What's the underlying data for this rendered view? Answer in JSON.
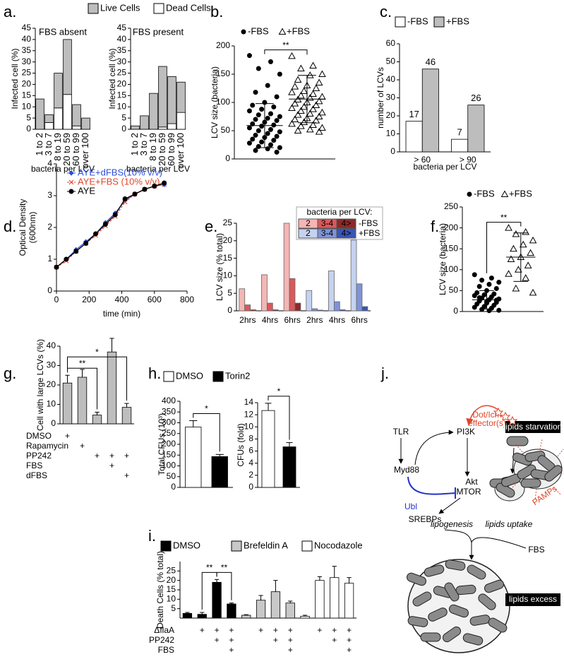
{
  "chart_data": [
    {
      "type": "bar",
      "panel": "a.",
      "title": "FBS absent",
      "stacked": true,
      "categories": [
        "1 to 2",
        "3 to 7",
        "8 to 19",
        "20 to 59",
        "60 to 99",
        "over 100"
      ],
      "series": [
        {
          "name": "Live Cells",
          "color": "#bdbdbd",
          "values": [
            13.5,
            3.5,
            15.5,
            24.5,
            9.5,
            5
          ]
        },
        {
          "name": "Dead Cells",
          "color": "#ffffff",
          "values": [
            0,
            3,
            9.5,
            15.5,
            1.5,
            0
          ]
        }
      ],
      "ylim": [
        0,
        45
      ],
      "yticks": [
        0,
        5,
        10,
        15,
        20,
        25,
        30,
        35,
        40,
        45
      ],
      "ylabel": "Infected cell (%)",
      "xlabel": "bacteria per LCV"
    },
    {
      "type": "bar",
      "title": "FBS present",
      "stacked": true,
      "categories": [
        "1 to 2",
        "3 to 7",
        "8 to 19",
        "20 to 59",
        "60 to 99",
        "over 100"
      ],
      "series": [
        {
          "color": "#bdbdbd",
          "values": [
            1.5,
            6,
            16,
            27,
            21,
            13.5
          ]
        },
        {
          "color": "#ffffff",
          "values": [
            0,
            0,
            0,
            1,
            2.5,
            7.5
          ]
        }
      ],
      "ylim": [
        0,
        45
      ],
      "yticks": [
        0,
        5,
        10,
        15,
        20,
        25,
        30,
        35,
        40,
        45
      ],
      "ylabel": "Infected cell (%)",
      "xlabel": "bacteria per LCV"
    },
    {
      "type": "dotplot",
      "panel": "b.",
      "series": [
        {
          "name": "-FBS",
          "marker": "circle",
          "color": "#000000",
          "values": [
            183,
            172,
            160,
            150,
            130,
            118,
            110,
            100,
            95,
            92,
            88,
            85,
            80,
            78,
            75,
            72,
            70,
            68,
            65,
            62,
            60,
            58,
            55,
            52,
            50,
            48,
            45,
            42,
            40,
            38,
            35,
            33,
            30,
            28,
            25,
            22,
            20,
            18,
            15,
            12
          ],
          "mean": 59,
          "sd": 39
        },
        {
          "name": "+FBS",
          "marker": "triangle",
          "color": "#000000",
          "values": [
            182,
            165,
            160,
            150,
            148,
            140,
            135,
            130,
            128,
            125,
            120,
            118,
            115,
            112,
            110,
            108,
            105,
            102,
            100,
            98,
            95,
            92,
            90,
            88,
            85,
            82,
            80,
            78,
            75,
            72,
            70,
            68,
            65,
            62,
            60,
            58,
            55,
            52,
            50,
            48
          ],
          "mean": 106,
          "sd": 42
        }
      ],
      "significance": [
        {
          "text": "**",
          "between": [
            0,
            1
          ]
        }
      ],
      "ylim": [
        0,
        200
      ],
      "yticks": [
        0,
        50,
        100,
        150,
        200
      ],
      "ylabel": "LCV size (bacteria)"
    },
    {
      "type": "bar",
      "panel": "c.",
      "categories": [
        "> 60",
        "> 90"
      ],
      "series": [
        {
          "name": "-FBS",
          "color": "#ffffff",
          "values": [
            17,
            7
          ]
        },
        {
          "name": "+FBS",
          "color": "#bdbdbd",
          "values": [
            46,
            26
          ]
        }
      ],
      "show_values": true,
      "ylim": [
        0,
        60
      ],
      "yticks": [
        0,
        10,
        20,
        30,
        40,
        50,
        60
      ],
      "ylabel": "number of LCVs",
      "xlabel": "bacteria per LCV"
    },
    {
      "type": "line",
      "panel": "d.",
      "x": [
        0,
        60,
        120,
        180,
        240,
        300,
        360,
        420,
        480,
        540,
        600,
        660
      ],
      "series": [
        {
          "name": "AYE+dFBS(10% v/v)",
          "color": "#2b4fd6",
          "marker": "diamond",
          "values": [
            0.75,
            1.0,
            1.3,
            1.55,
            1.8,
            2.15,
            2.45,
            2.85,
            3.05,
            3.2,
            3.3,
            3.35
          ]
        },
        {
          "name": "AYE+FBS (10% v/v)",
          "color": "#e0452b",
          "marker": "cross",
          "dash": true,
          "values": [
            0.75,
            0.95,
            1.25,
            1.5,
            1.75,
            2.05,
            2.35,
            2.8,
            3.05,
            3.2,
            3.3,
            3.35
          ]
        },
        {
          "name": "AYE",
          "color": "#000000",
          "marker": "circle",
          "values": [
            0.75,
            1.0,
            1.25,
            1.5,
            1.8,
            2.1,
            2.4,
            2.9,
            3.05,
            3.2,
            3.3,
            3.4
          ]
        }
      ],
      "xlim": [
        0,
        800
      ],
      "xticks": [
        0,
        200,
        400,
        600,
        800
      ],
      "ylim": [
        0,
        4
      ],
      "yticks": [
        0,
        1,
        2,
        3,
        4
      ],
      "ylabel": [
        "Optical Density",
        "(600nm)"
      ],
      "xlabel": "time (min)"
    },
    {
      "type": "bar",
      "panel": "e.",
      "legend_title": "bacteria per LCV:",
      "groups": [
        {
          "name": "-FBS",
          "categories": [
            "2hrs",
            "4hrs",
            "6hrs"
          ],
          "series": [
            {
              "name": "2",
              "color": "#f4b6b6",
              "values": [
                6.3,
                10.3,
                25
              ]
            },
            {
              "name": "3-4",
              "color": "#d9595b",
              "values": [
                1.7,
                2.2,
                9.2
              ]
            },
            {
              "name": "4>",
              "color": "#8b2a2a",
              "values": [
                0.3,
                0.3,
                2.2
              ]
            }
          ]
        },
        {
          "name": "+FBS",
          "categories": [
            "2hrs",
            "4hrs",
            "6hrs"
          ],
          "series": [
            {
              "name": "2",
              "color": "#c5d3f0",
              "values": [
                5.8,
                11.4,
                20.2
              ]
            },
            {
              "name": "3-4",
              "color": "#7f93d8",
              "values": [
                0.6,
                2.6,
                7.7
              ]
            },
            {
              "name": "4>",
              "color": "#3a54b4",
              "values": [
                0.2,
                0.3,
                1.2
              ]
            }
          ]
        }
      ],
      "ylim": [
        0,
        25
      ],
      "yticks": [
        0,
        5,
        10,
        15,
        20,
        25
      ],
      "ylabel": "LCV size (% total)"
    },
    {
      "type": "dotplot",
      "panel": "f.",
      "series": [
        {
          "name": "-FBS",
          "marker": "circle",
          "color": "#000000",
          "values": [
            88,
            80,
            75,
            70,
            65,
            60,
            55,
            50,
            45,
            42,
            40,
            38,
            35,
            32,
            30,
            28,
            25,
            22,
            20,
            18,
            15,
            12,
            10,
            8,
            5,
            3,
            2,
            33,
            27,
            24
          ],
          "mean": 28,
          "sd": 22
        },
        {
          "name": "+FBS",
          "marker": "triangle",
          "color": "#000000",
          "values": [
            200,
            190,
            185,
            170,
            160,
            150,
            140,
            130,
            125,
            110,
            100,
            90,
            80,
            55,
            45
          ],
          "mean": 130,
          "sd": 58
        }
      ],
      "significance": [
        {
          "text": "**",
          "between": [
            0,
            1
          ]
        }
      ],
      "ylim": [
        0,
        250
      ],
      "yticks": [
        0,
        50,
        100,
        150,
        200,
        250
      ],
      "ylabel": "LCV size (bacteria)"
    },
    {
      "type": "bar",
      "panel": "g.",
      "values": [
        21,
        24,
        4.5,
        37,
        8.5
      ],
      "errors": [
        4,
        4,
        1.5,
        7,
        2
      ],
      "color": "#bdbdbd",
      "treatments": [
        {
          "label": "DMSO",
          "marks": [
            "+",
            null,
            null,
            null,
            null
          ]
        },
        {
          "label": "Rapamycin",
          "marks": [
            null,
            "+",
            null,
            null,
            null
          ]
        },
        {
          "label": "PP242",
          "marks": [
            null,
            null,
            "+",
            "+",
            "+"
          ]
        },
        {
          "label": "FBS",
          "marks": [
            null,
            null,
            null,
            "+",
            null
          ]
        },
        {
          "label": "dFBS",
          "marks": [
            null,
            null,
            null,
            null,
            "+"
          ]
        }
      ],
      "significance": [
        {
          "text": "**",
          "between": [
            0,
            2
          ]
        },
        {
          "text": "*",
          "between": [
            0,
            4
          ]
        }
      ],
      "ylim": [
        0,
        40
      ],
      "yticks": [
        0,
        10,
        20,
        30,
        40
      ],
      "ylabel": "Cell with large LCVs (%)"
    },
    {
      "type": "bar",
      "panel": "h.",
      "series": [
        {
          "name": "DMSO",
          "color": "#ffffff",
          "values": [
            280
          ],
          "errors": [
            30
          ]
        },
        {
          "name": "Torin2",
          "color": "#000000",
          "values": [
            143
          ],
          "errors": [
            10
          ]
        }
      ],
      "significance": [
        {
          "text": "*",
          "between": [
            0,
            1
          ]
        }
      ],
      "ylim": [
        0,
        400
      ],
      "yticks": [
        0,
        50,
        100,
        150,
        200,
        250,
        300,
        350,
        400
      ],
      "ylabel": "Total CFUs (10³)"
    },
    {
      "type": "bar",
      "series": [
        {
          "color": "#ffffff",
          "values": [
            12.7
          ],
          "errors": [
            1.2
          ]
        },
        {
          "color": "#000000",
          "values": [
            6.7
          ],
          "errors": [
            0.7
          ]
        }
      ],
      "significance": [
        {
          "text": "*",
          "between": [
            0,
            1
          ]
        }
      ],
      "ylim": [
        0,
        14
      ],
      "yticks": [
        0,
        2,
        4,
        6,
        8,
        10,
        12,
        14
      ],
      "ylabel": "CFUs (fold)"
    },
    {
      "type": "bar",
      "panel": "i.",
      "series": [
        {
          "name": "DMSO",
          "color": "#000000",
          "values": [
            2.5,
            2,
            19,
            7.5
          ],
          "errors": [
            0.5,
            1,
            1.5,
            0.5
          ]
        },
        {
          "name": "Brefeldin A",
          "color": "#c8c8c8",
          "values": [
            1.5,
            9.5,
            14,
            8
          ],
          "errors": [
            0.3,
            2.5,
            6,
            1
          ]
        },
        {
          "name": "Nocodazole",
          "color": "#ffffff",
          "values": [
            1,
            20,
            21.5,
            18.5
          ],
          "errors": [
            0.5,
            2,
            6,
            3
          ]
        }
      ],
      "treatments": [
        {
          "label": "ΔflaA",
          "marks": [
            null,
            "+",
            "+",
            "+",
            null,
            "+",
            "+",
            "+",
            null,
            "+",
            "+",
            "+"
          ]
        },
        {
          "label": "PP242",
          "marks": [
            null,
            null,
            "+",
            "+",
            null,
            null,
            "+",
            "+",
            null,
            null,
            "+",
            "+"
          ]
        },
        {
          "label": "FBS",
          "marks": [
            null,
            null,
            null,
            "+",
            null,
            null,
            null,
            "+",
            null,
            null,
            null,
            "+"
          ]
        }
      ],
      "significance": [
        {
          "text": "**",
          "between": [
            1,
            2
          ]
        },
        {
          "text": "**",
          "between": [
            2,
            3
          ]
        }
      ],
      "ylim": [
        0,
        30
      ],
      "yticks": [
        5,
        10,
        15,
        20,
        25
      ],
      "ylabel": "Death Cells (% total)"
    }
  ],
  "diagram": {
    "panel": "j.",
    "labels": [
      "TLR",
      "PI3K",
      "Myd88",
      "Akt",
      "MTOR",
      "Ubl",
      "SREBPs",
      "lipogenesis",
      "lipids uptake",
      "FBS",
      "Dot/Icm",
      "effector(s)",
      "lipids starvation",
      "PAMPs",
      "lipids excess"
    ]
  }
}
